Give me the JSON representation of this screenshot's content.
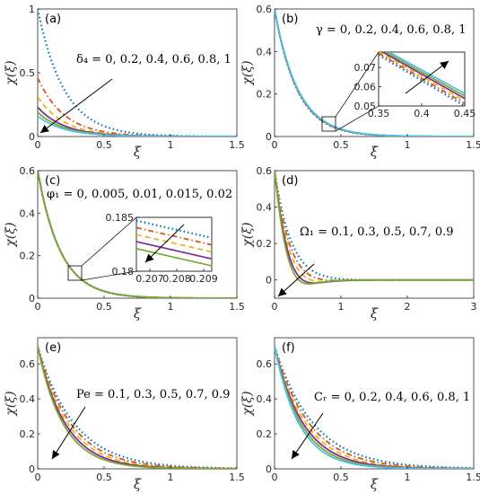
{
  "figure": {
    "panels": [
      {
        "id": "a",
        "tag": "(a)",
        "annotation": "δ₄ = 0, 0.2, 0.4, 0.6, 0.8, 1",
        "xlabel": "ξ",
        "ylabel": "χ(ξ)",
        "xlim": [
          0,
          1.5
        ],
        "ylim": [
          0,
          1
        ],
        "xticks": [
          "0",
          "0.5",
          "1",
          "1.5"
        ],
        "yticks": [
          "0",
          "0.5",
          "1"
        ],
        "arrow_direction": "toward origin"
      },
      {
        "id": "b",
        "tag": "(b)",
        "annotation": "γ = 0, 0.2, 0.4, 0.6, 0.8, 1",
        "xlabel": "ξ",
        "ylabel": "χ(ξ)",
        "xlim": [
          0,
          1.5
        ],
        "ylim": [
          0,
          0.6
        ],
        "xticks": [
          "0",
          "0.5",
          "1",
          "1.5"
        ],
        "yticks": [
          "0",
          "0.2",
          "0.4",
          "0.6"
        ],
        "inset": {
          "xticks": [
            "0.35",
            "0.4",
            "0.45"
          ],
          "yticks": [
            "0.05",
            "0.06",
            "0.07"
          ],
          "xlim": [
            0.35,
            0.45
          ],
          "ylim": [
            0.05,
            0.078
          ]
        },
        "arrow_direction": "upward in inset"
      },
      {
        "id": "c",
        "tag": "(c)",
        "annotation": "φ₁ = 0, 0.005, 0.01, 0.015, 0.02",
        "xlabel": "ξ",
        "ylabel": "χ(ξ)",
        "xlim": [
          0,
          1.5
        ],
        "ylim": [
          0,
          0.6
        ],
        "xticks": [
          "0",
          "0.5",
          "1",
          "1.5"
        ],
        "yticks": [
          "0",
          "0.2",
          "0.4",
          "0.6"
        ],
        "inset": {
          "xticks": [
            "0.207",
            "0.208",
            "0.209"
          ],
          "yticks": [
            "0.18",
            "0.185"
          ],
          "xlim": [
            0.2065,
            0.2093
          ],
          "ylim": [
            0.18,
            0.185
          ]
        },
        "arrow_direction": "downward in inset"
      },
      {
        "id": "d",
        "tag": "(d)",
        "annotation": "Ω₁ = 0.1, 0.3, 0.5, 0.7, 0.9",
        "xlabel": "ξ",
        "ylabel": "χ(ξ)",
        "xlim": [
          0,
          3
        ],
        "ylim": [
          -0.1,
          0.6
        ],
        "xticks": [
          "0",
          "1",
          "2",
          "3"
        ],
        "yticks": [
          "0",
          "0.2",
          "0.4",
          "0.6"
        ],
        "arrow_direction": "toward origin"
      },
      {
        "id": "e",
        "tag": "(e)",
        "annotation": "Pe = 0.1, 0.3, 0.5, 0.7, 0.9",
        "xlabel": "ξ",
        "ylabel": "χ(ξ)",
        "xlim": [
          0,
          1.5
        ],
        "ylim": [
          0,
          0.75
        ],
        "xticks": [
          "0",
          "0.5",
          "1",
          "1.5"
        ],
        "yticks": [
          "0",
          "0.2",
          "0.4",
          "0.6"
        ],
        "arrow_direction": "toward origin"
      },
      {
        "id": "f",
        "tag": "(f)",
        "annotation": "Cᵣ = 0, 0.2, 0.4, 0.6, 0.8, 1",
        "xlabel": "ξ",
        "ylabel": "χ(ξ)",
        "xlim": [
          0,
          1.5
        ],
        "ylim": [
          0,
          0.75
        ],
        "xticks": [
          "0",
          "0.5",
          "1",
          "1.5"
        ],
        "yticks": [
          "0",
          "0.2",
          "0.4",
          "0.6"
        ],
        "arrow_direction": "toward origin"
      }
    ]
  },
  "chart_data": [
    {
      "type": "line",
      "panel": "a",
      "xlim": [
        0,
        1.5
      ],
      "ylim": [
        0,
        1
      ],
      "grid": false,
      "series": [
        {
          "style": "dotted",
          "color": "#0072BD",
          "y0": 1.0,
          "decay": 5.0
        },
        {
          "style": "dashdot",
          "color": "#D95319",
          "y0": 0.46,
          "decay": 5.0
        },
        {
          "style": "dashed",
          "color": "#EDB120",
          "y0": 0.31,
          "decay": 5.0
        },
        {
          "style": "solid",
          "color": "#7E2F8E",
          "y0": 0.23,
          "decay": 5.0
        },
        {
          "style": "solid",
          "color": "#77AC30",
          "y0": 0.19,
          "decay": 5.0
        },
        {
          "style": "solid",
          "color": "#4DBEEE",
          "y0": 0.16,
          "decay": 5.0
        }
      ]
    },
    {
      "type": "line",
      "panel": "b",
      "xlim": [
        0,
        1.5
      ],
      "ylim": [
        0,
        0.6
      ],
      "grid": false,
      "series": [
        {
          "style": "dotted",
          "color": "#0072BD",
          "y0": 0.6,
          "decay": 5.9
        },
        {
          "style": "dashdot",
          "color": "#D95319",
          "y0": 0.6,
          "decay": 5.85
        },
        {
          "style": "dashed",
          "color": "#EDB120",
          "y0": 0.6,
          "decay": 5.8
        },
        {
          "style": "solid",
          "color": "#7E2F8E",
          "y0": 0.6,
          "decay": 5.75
        },
        {
          "style": "solid",
          "color": "#77AC30",
          "y0": 0.6,
          "decay": 5.7
        },
        {
          "style": "solid",
          "color": "#4DBEEE",
          "y0": 0.6,
          "decay": 5.65
        }
      ]
    },
    {
      "type": "line",
      "panel": "c",
      "xlim": [
        0,
        1.5
      ],
      "ylim": [
        0,
        0.6
      ],
      "grid": false,
      "series": [
        {
          "style": "dotted",
          "color": "#0072BD",
          "y0": 0.6,
          "decay": 5.8
        },
        {
          "style": "dashdot",
          "color": "#D95319",
          "y0": 0.6,
          "decay": 5.81
        },
        {
          "style": "dashed",
          "color": "#EDB120",
          "y0": 0.6,
          "decay": 5.82
        },
        {
          "style": "solid",
          "color": "#7E2F8E",
          "y0": 0.6,
          "decay": 5.83
        },
        {
          "style": "solid",
          "color": "#77AC30",
          "y0": 0.6,
          "decay": 5.84
        }
      ]
    },
    {
      "type": "line",
      "panel": "d",
      "xlim": [
        0,
        3
      ],
      "ylim": [
        -0.1,
        0.6
      ],
      "grid": false,
      "series": [
        {
          "style": "dotted",
          "color": "#0072BD",
          "y0": 0.6,
          "decay": 4.0,
          "osc": 1.0
        },
        {
          "style": "dashdot",
          "color": "#D95319",
          "y0": 0.6,
          "decay": 4.4,
          "osc": 2.0
        },
        {
          "style": "dashed",
          "color": "#EDB120",
          "y0": 0.6,
          "decay": 4.8,
          "osc": 2.8
        },
        {
          "style": "solid",
          "color": "#7E2F8E",
          "y0": 0.6,
          "decay": 5.2,
          "osc": 3.6
        },
        {
          "style": "solid",
          "color": "#77AC30",
          "y0": 0.6,
          "decay": 5.6,
          "osc": 4.2
        }
      ]
    },
    {
      "type": "line",
      "panel": "e",
      "xlim": [
        0,
        1.5
      ],
      "ylim": [
        0,
        0.75
      ],
      "grid": false,
      "series": [
        {
          "style": "dotted",
          "color": "#0072BD",
          "y0": 0.7,
          "decay": 3.6
        },
        {
          "style": "dashdot",
          "color": "#D95319",
          "y0": 0.7,
          "decay": 4.0
        },
        {
          "style": "dashed",
          "color": "#EDB120",
          "y0": 0.7,
          "decay": 4.4
        },
        {
          "style": "solid",
          "color": "#7E2F8E",
          "y0": 0.7,
          "decay": 4.8
        },
        {
          "style": "solid",
          "color": "#77AC30",
          "y0": 0.7,
          "decay": 5.2
        }
      ]
    },
    {
      "type": "line",
      "panel": "f",
      "xlim": [
        0,
        1.5
      ],
      "ylim": [
        0,
        0.75
      ],
      "grid": false,
      "series": [
        {
          "style": "dotted",
          "color": "#0072BD",
          "y0": 0.7,
          "decay": 3.4
        },
        {
          "style": "dashdot",
          "color": "#D95319",
          "y0": 0.7,
          "decay": 3.8
        },
        {
          "style": "dashed",
          "color": "#EDB120",
          "y0": 0.7,
          "decay": 4.2
        },
        {
          "style": "solid",
          "color": "#7E2F8E",
          "y0": 0.7,
          "decay": 4.6
        },
        {
          "style": "solid",
          "color": "#77AC30",
          "y0": 0.7,
          "decay": 5.0
        },
        {
          "style": "solid",
          "color": "#4DBEEE",
          "y0": 0.7,
          "decay": 5.4
        }
      ]
    }
  ]
}
